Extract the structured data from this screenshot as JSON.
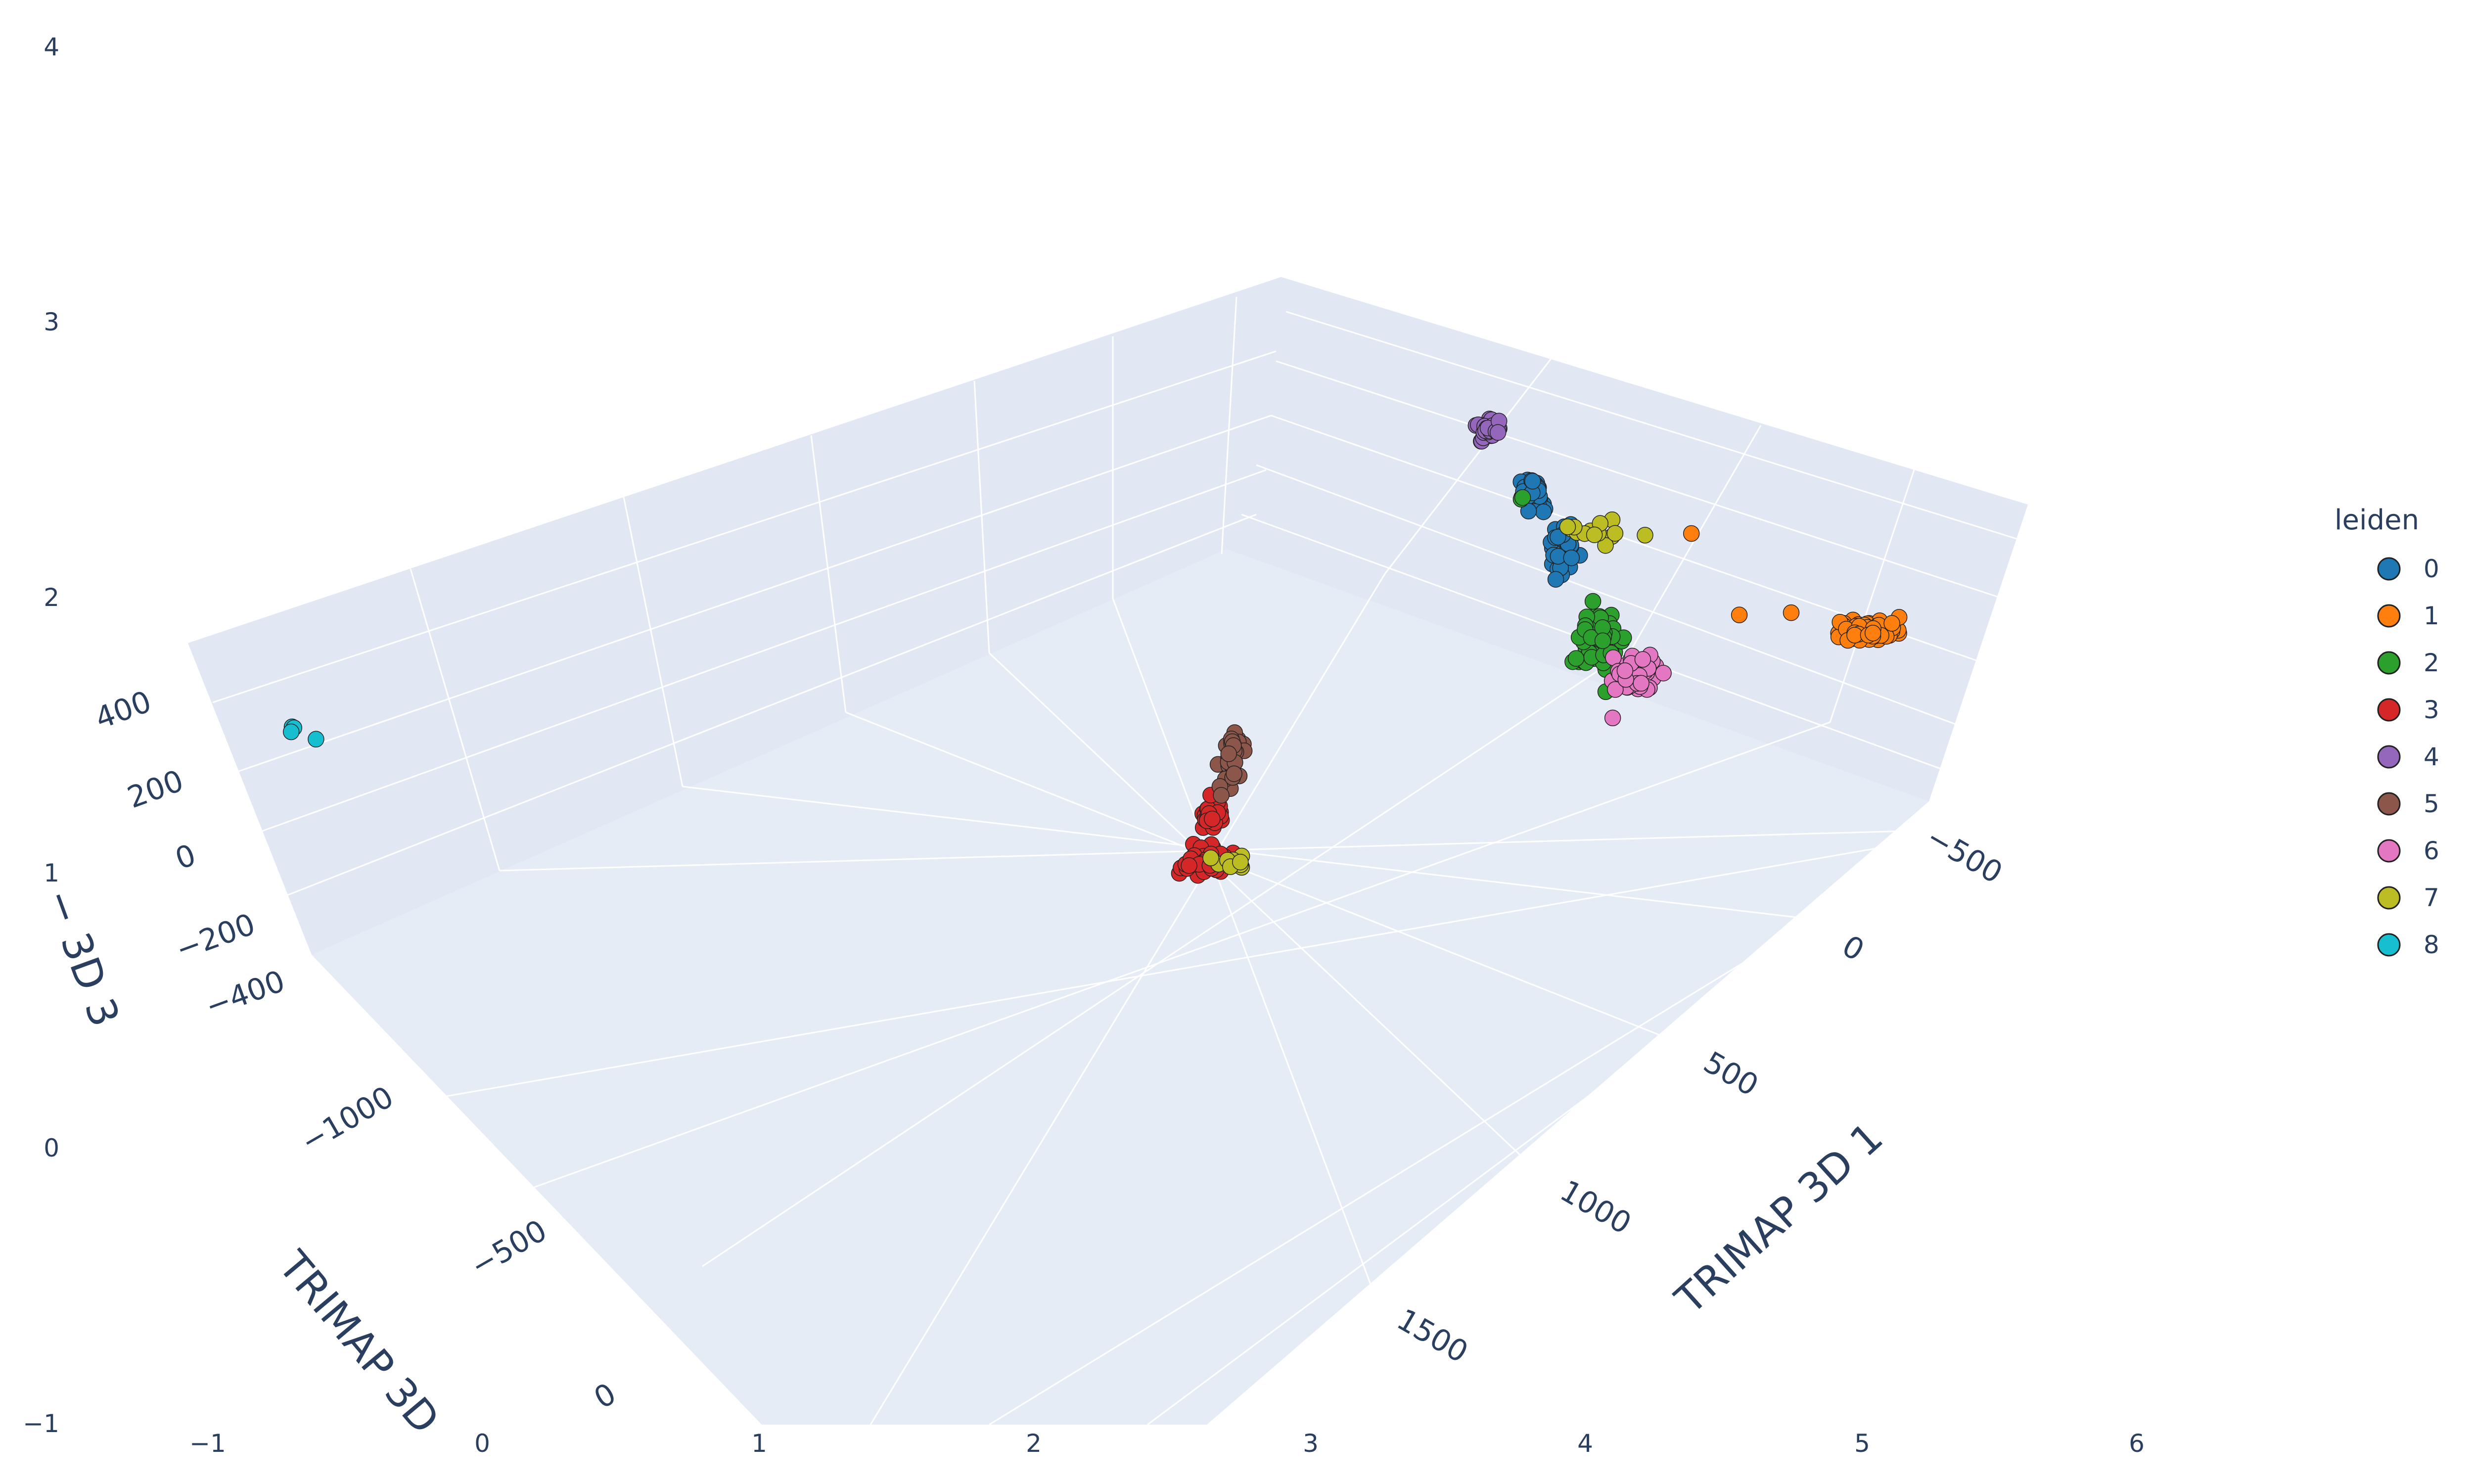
{
  "chart_data": {
    "type": "scatter3d",
    "scene": {
      "x_axis": {
        "title": "TRIMAP 3D 1",
        "ticks": [
          "−500",
          "0",
          "500",
          "1000",
          "1500"
        ]
      },
      "y_axis": {
        "title": "TRIMAP 3D",
        "ticks": [
          "−1000",
          "−500",
          "0"
        ]
      },
      "z_axis": {
        "title": "− 3D 3",
        "ticks": [
          "400",
          "200",
          "0",
          "−200",
          "−400"
        ]
      },
      "background": "#e5ecf6",
      "grid_color": "#ffffff"
    },
    "outer_axes": {
      "x_ticks": [
        "−1",
        "0",
        "1",
        "2",
        "3",
        "4",
        "5",
        "6"
      ],
      "y_ticks": [
        "4",
        "3",
        "2",
        "1",
        "0",
        "−1"
      ]
    },
    "legend": {
      "title": "leiden",
      "placement": "right"
    },
    "series": [
      {
        "name": "0",
        "color": "#1f77b4"
      },
      {
        "name": "1",
        "color": "#ff7f0e"
      },
      {
        "name": "2",
        "color": "#2ca02c"
      },
      {
        "name": "3",
        "color": "#d62728"
      },
      {
        "name": "4",
        "color": "#9467bd"
      },
      {
        "name": "5",
        "color": "#8c564b"
      },
      {
        "name": "6",
        "color": "#e377c2"
      },
      {
        "name": "7",
        "color": "#bcbd22"
      },
      {
        "name": "8",
        "color": "#17becf"
      }
    ]
  }
}
